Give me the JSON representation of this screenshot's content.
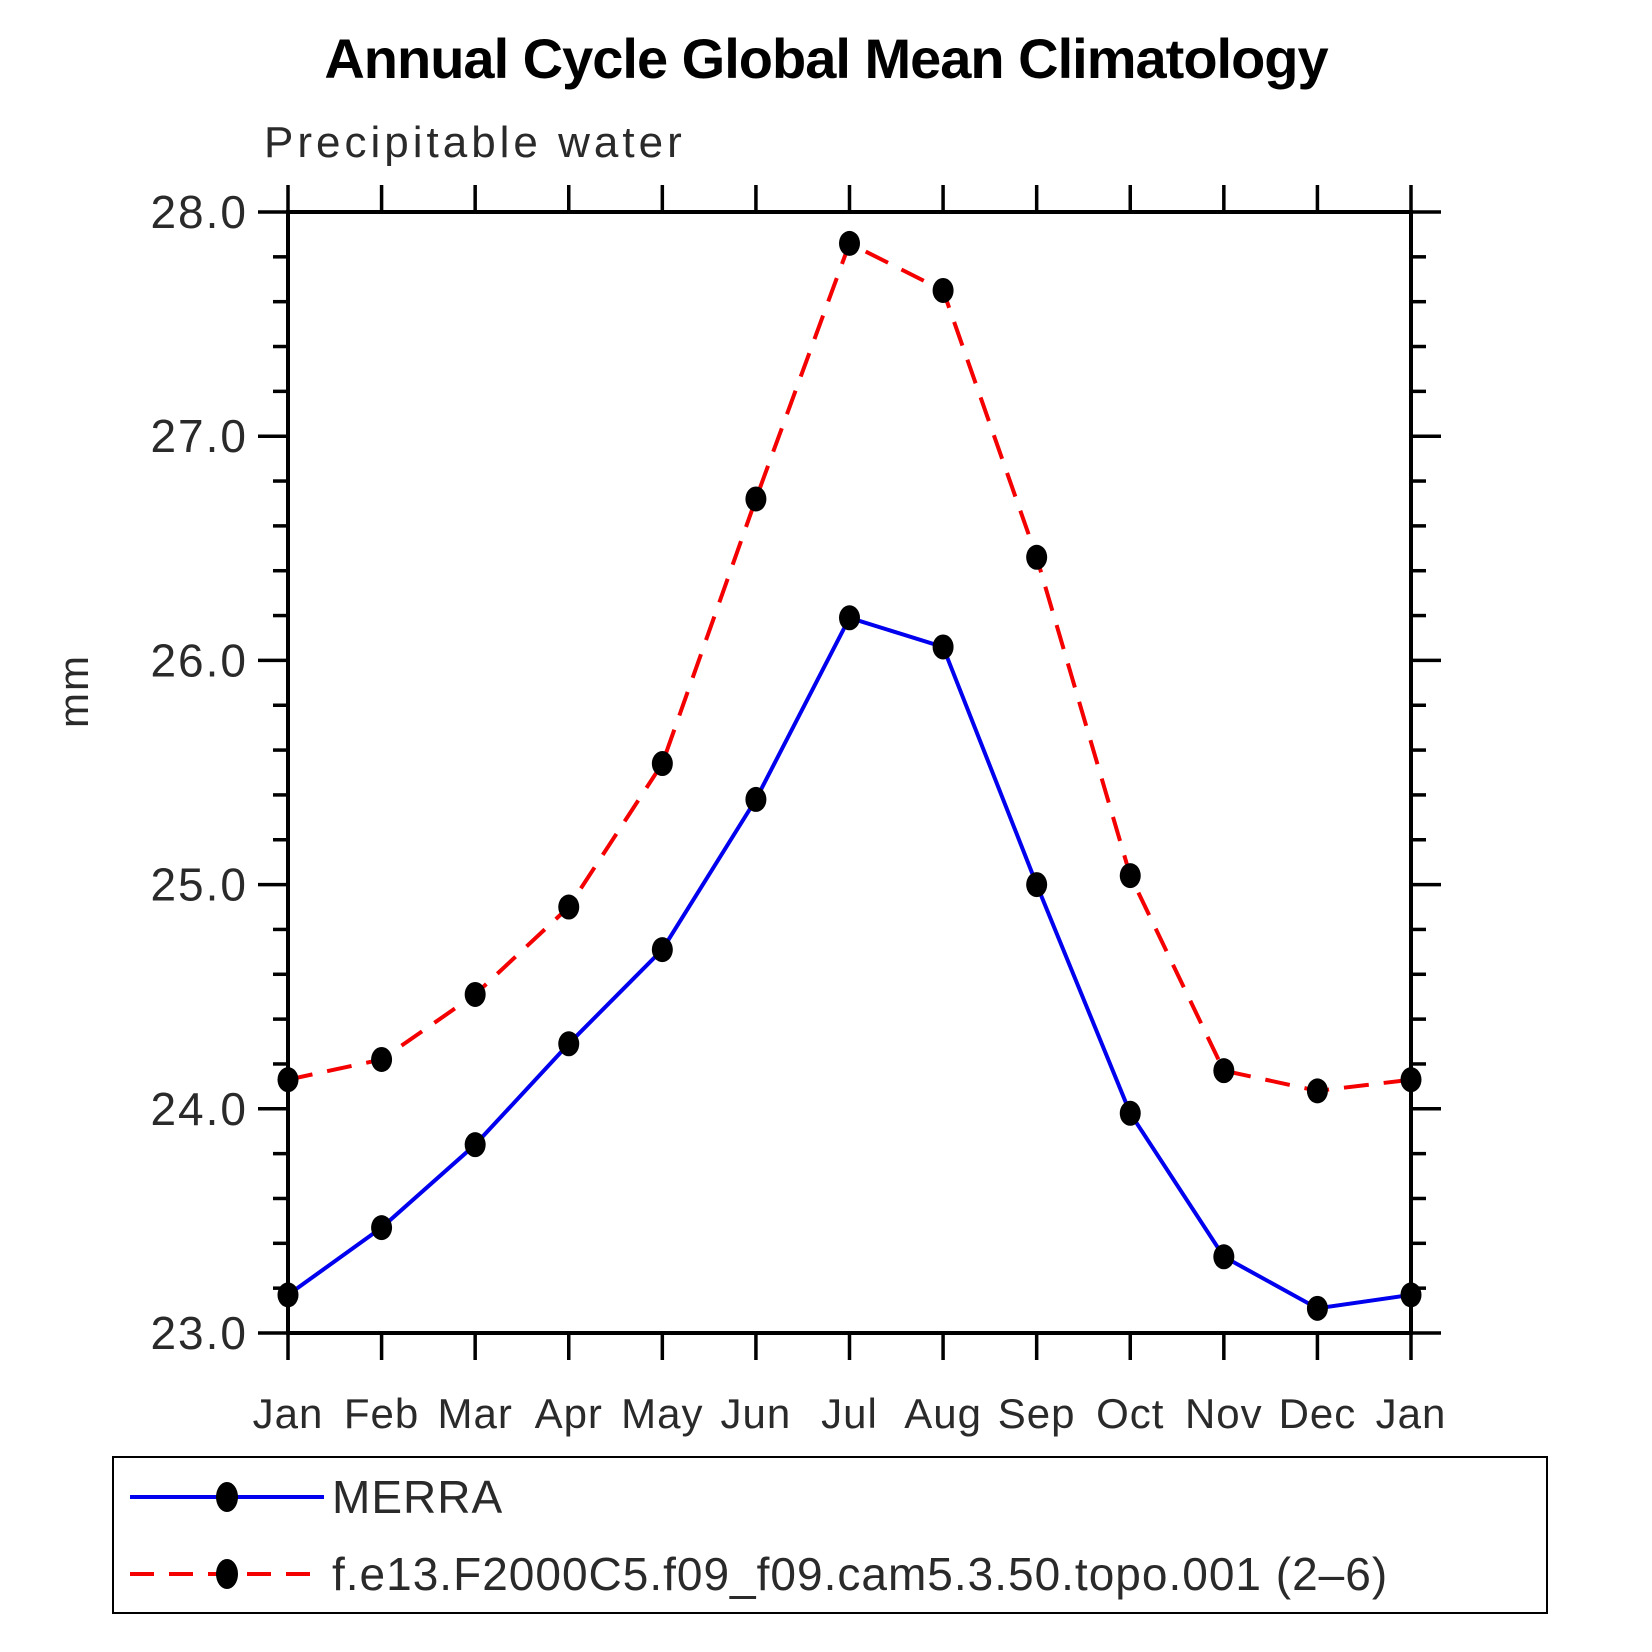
{
  "title": "Annual Cycle Global Mean Climatology",
  "subtitle": "Precipitable water",
  "ylabel": "mm",
  "legend": [
    {
      "label": "MERRA",
      "color": "#0000ee",
      "line_style": "solid",
      "marker": "filled-ellipse"
    },
    {
      "label": "f.e13.F2000C5.f09_f09.cam5.3.50.topo.001 (2–6)",
      "color": "#f40000",
      "line_style": "dashed",
      "marker": "filled-ellipse"
    }
  ],
  "chart_data": {
    "type": "line",
    "title": "Annual Cycle Global Mean Climatology",
    "subtitle": "Precipitable water",
    "xlabel": "",
    "ylabel": "mm",
    "categories": [
      "Jan",
      "Feb",
      "Mar",
      "Apr",
      "May",
      "Jun",
      "Jul",
      "Aug",
      "Sep",
      "Oct",
      "Nov",
      "Dec",
      "Jan"
    ],
    "series": [
      {
        "name": "MERRA",
        "color": "#0000ee",
        "line_style": "solid",
        "marker_color": "#000000",
        "values": [
          23.17,
          23.47,
          23.84,
          24.29,
          24.71,
          25.38,
          26.19,
          26.06,
          25.0,
          23.98,
          23.34,
          23.11,
          23.17
        ]
      },
      {
        "name": "f.e13.F2000C5.f09_f09.cam5.3.50.topo.001 (2–6)",
        "color": "#f40000",
        "line_style": "dashed",
        "marker_color": "#000000",
        "values": [
          24.13,
          24.22,
          24.51,
          24.9,
          25.54,
          26.72,
          27.86,
          27.65,
          26.46,
          25.04,
          24.17,
          24.08,
          24.13
        ]
      }
    ],
    "ylim": [
      23.0,
      28.0
    ],
    "yticks": [
      23.0,
      24.0,
      25.0,
      26.0,
      27.0,
      28.0
    ],
    "ytick_labels": [
      "23.0",
      "24.0",
      "25.0",
      "26.0",
      "27.0",
      "28.0"
    ],
    "minor_tick_step": 0.2,
    "grid": false,
    "legend_position": "bottom"
  }
}
